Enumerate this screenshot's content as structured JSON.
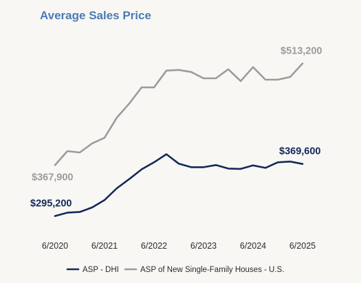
{
  "chart_data": {
    "type": "line",
    "title": "Average Sales Price",
    "xlabel": "",
    "ylabel": "",
    "x_ticks": [
      "6/2020",
      "6/2021",
      "6/2022",
      "6/2023",
      "6/2024",
      "6/2025"
    ],
    "x": [
      "6/2020",
      "7/2020",
      "8/2020",
      "9/2020",
      "10/2020",
      "11/2020",
      "12/2020",
      "1/2021",
      "2/2021",
      "3/2021",
      "4/2021",
      "5/2021",
      "6/2021",
      "7/2021",
      "8/2021",
      "9/2021",
      "10/2021",
      "11/2021",
      "12/2021",
      "1/2022",
      "2/2022",
      "3/2022",
      "4/2022",
      "5/2022",
      "6/2022",
      "7/2022",
      "8/2022",
      "9/2022",
      "10/2022",
      "11/2022",
      "12/2022",
      "1/2023",
      "2/2023",
      "3/2023",
      "4/2023",
      "5/2023",
      "6/2023",
      "7/2023",
      "8/2023",
      "9/2023",
      "10/2023",
      "11/2023",
      "12/2023",
      "1/2024",
      "2/2024",
      "3/2024",
      "4/2024",
      "5/2024",
      "6/2024",
      "7/2024",
      "8/2024",
      "9/2024",
      "10/2024",
      "11/2024",
      "12/2024",
      "1/2025",
      "2/2025",
      "3/2025",
      "4/2025",
      "5/2025",
      "6/2025"
    ],
    "ylim": [
      280000,
      545000
    ],
    "grid": false,
    "legend_position": "bottom",
    "series": [
      {
        "name": "ASP - DHI",
        "color": "#14285a",
        "points": [
          [
            "6/2020",
            295200
          ],
          [
            "9/2020",
            300000
          ],
          [
            "12/2020",
            301000
          ],
          [
            "3/2021",
            307500
          ],
          [
            "6/2021",
            318000
          ],
          [
            "9/2021",
            335000
          ],
          [
            "12/2021",
            348000
          ],
          [
            "3/2022",
            362000
          ],
          [
            "6/2022",
            372000
          ],
          [
            "9/2022",
            383500
          ],
          [
            "12/2022",
            370000
          ],
          [
            "3/2023",
            365000
          ],
          [
            "6/2023",
            365000
          ],
          [
            "9/2023",
            368000
          ],
          [
            "12/2023",
            363000
          ],
          [
            "3/2024",
            362500
          ],
          [
            "6/2024",
            367500
          ],
          [
            "9/2024",
            364000
          ],
          [
            "12/2024",
            372000
          ],
          [
            "3/2025",
            373000
          ],
          [
            "6/2025",
            369600
          ]
        ],
        "end_label": "$369,600",
        "start_label": "$295,200"
      },
      {
        "name": "ASP of New Single-Family Houses - U.S.",
        "color": "#9b9b9b",
        "points": [
          [
            "6/2020",
            367900
          ],
          [
            "9/2020",
            388000
          ],
          [
            "12/2020",
            386000
          ],
          [
            "3/2021",
            399000
          ],
          [
            "6/2021",
            407000
          ],
          [
            "9/2021",
            436000
          ],
          [
            "12/2021",
            456000
          ],
          [
            "3/2022",
            479000
          ],
          [
            "6/2022",
            479000
          ],
          [
            "9/2022",
            503000
          ],
          [
            "12/2022",
            504000
          ],
          [
            "3/2023",
            501000
          ],
          [
            "6/2023",
            492000
          ],
          [
            "9/2023",
            492000
          ],
          [
            "12/2023",
            505000
          ],
          [
            "3/2024",
            488000
          ],
          [
            "6/2024",
            508000
          ],
          [
            "9/2024",
            490000
          ],
          [
            "12/2024",
            490000
          ],
          [
            "3/2025",
            494000
          ],
          [
            "6/2025",
            513200
          ]
        ],
        "end_label": "$513,200",
        "start_label": "$367,900"
      }
    ]
  }
}
